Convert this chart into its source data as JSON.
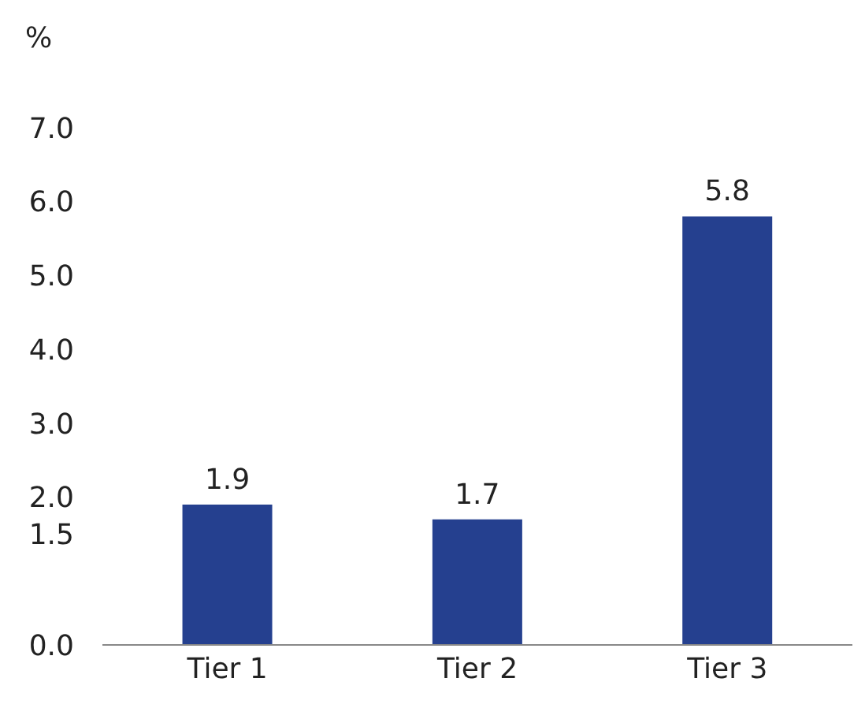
{
  "chart_data": {
    "type": "bar",
    "ylabel": "%",
    "categories": [
      "Tier 1",
      "Tier 2",
      "Tier 3"
    ],
    "values": [
      1.9,
      1.7,
      5.8
    ],
    "color": "#25408f",
    "ylim": [
      0,
      7
    ],
    "yticks": [
      {
        "value": 0,
        "label": "0.0"
      },
      {
        "value": 1.5,
        "label": "1.5"
      },
      {
        "value": 2,
        "label": "2.0"
      },
      {
        "value": 3,
        "label": "3.0"
      },
      {
        "value": 4,
        "label": "4.0"
      },
      {
        "value": 5,
        "label": "5.0"
      },
      {
        "value": 6,
        "label": "6.0"
      },
      {
        "value": 7,
        "label": "7.0"
      }
    ],
    "data_labels": true,
    "grid": false,
    "legend": false
  }
}
